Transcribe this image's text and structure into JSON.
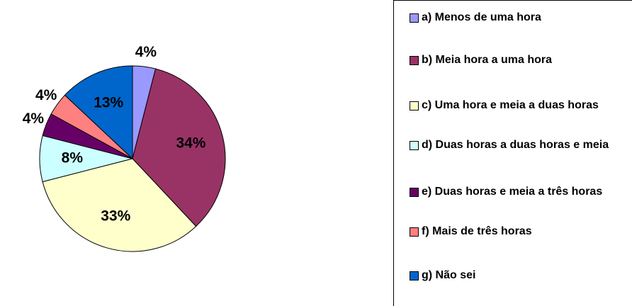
{
  "chart_data": {
    "type": "pie",
    "categories": [
      "a) Menos de uma hora",
      "b) Meia hora a uma hora",
      "c) Uma hora e meia a duas horas",
      "d) Duas horas a duas horas e meia",
      "e) Duas horas e meia a três horas",
      "f) Mais de três horas",
      "g) Não sei"
    ],
    "values": [
      4,
      34,
      33,
      8,
      4,
      4,
      13
    ],
    "value_labels": [
      "4%",
      "34%",
      "33%",
      "8%",
      "4%",
      "4%",
      "13%"
    ],
    "colors": [
      "#9999ff",
      "#993366",
      "#ffffcc",
      "#ccffff",
      "#660066",
      "#ff8080",
      "#0066cc"
    ]
  }
}
